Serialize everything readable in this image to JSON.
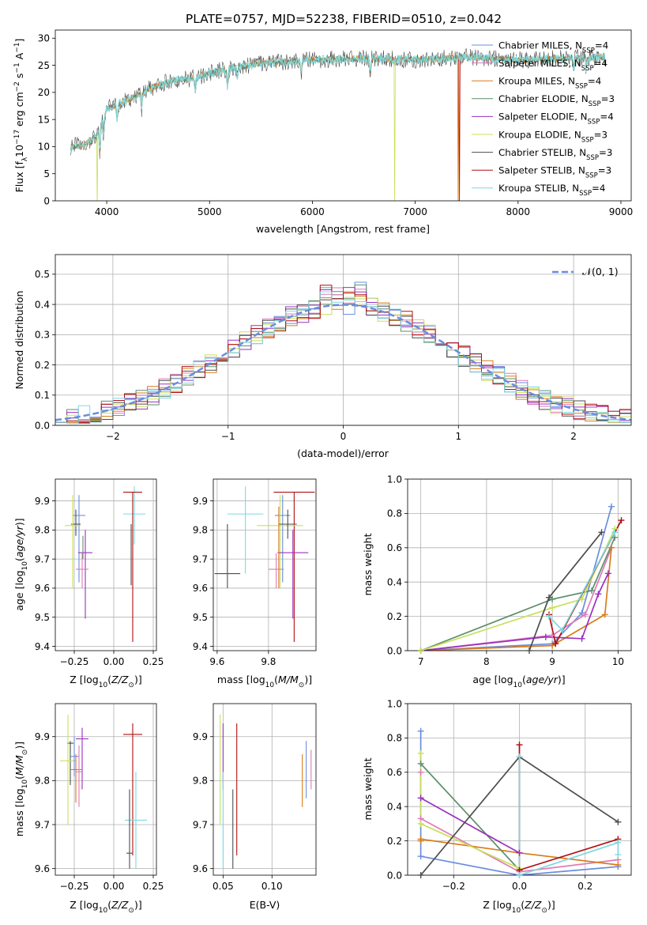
{
  "title": "PLATE=0757, MJD=52238, FIBERID=0510, z=0.042",
  "colors": {
    "Chabrier MILES": "#6a8de0",
    "Salpeter MILES": "#e07ab8",
    "Kroupa MILES": "#d97c1a",
    "Chabrier ELODIE": "#5d8f6a",
    "Salpeter ELODIE": "#9b30c0",
    "Kroupa ELODIE": "#c8e05a",
    "Chabrier STELIB": "#4d4d4d",
    "Salpeter STELIB": "#b01010",
    "Kroupa STELIB": "#7fd8e0"
  },
  "legend": [
    {
      "model": "Chabrier MILES",
      "label": "Chabrier MILES, N",
      "sub": "SSP",
      "tail": "=4"
    },
    {
      "model": "Salpeter MILES",
      "label": "Salpeter MILES, N",
      "sub": "SSP",
      "tail": "=4"
    },
    {
      "model": "Kroupa MILES",
      "label": "Kroupa MILES, N",
      "sub": "SSP",
      "tail": "=4"
    },
    {
      "model": "Chabrier ELODIE",
      "label": "Chabrier ELODIE, N",
      "sub": "SSP",
      "tail": "=3"
    },
    {
      "model": "Salpeter ELODIE",
      "label": "Salpeter ELODIE, N",
      "sub": "SSP",
      "tail": "=4"
    },
    {
      "model": "Kroupa ELODIE",
      "label": "Kroupa ELODIE, N",
      "sub": "SSP",
      "tail": "=3"
    },
    {
      "model": "Chabrier STELIB",
      "label": "Chabrier STELIB, N",
      "sub": "SSP",
      "tail": "=3"
    },
    {
      "model": "Salpeter STELIB",
      "label": "Salpeter STELIB, N",
      "sub": "SSP",
      "tail": "=3"
    },
    {
      "model": "Kroupa STELIB",
      "label": "Kroupa STELIB, N",
      "sub": "SSP",
      "tail": "=4"
    }
  ],
  "chart_data": [
    {
      "id": "spectrum",
      "type": "line",
      "xlabel": "wavelength [Angstrom, rest frame]",
      "ylabel": "Flux [f",
      "xlim": [
        3500,
        9100
      ],
      "ylim": [
        0,
        31.5
      ],
      "xticks": [
        4000,
        5000,
        6000,
        7000,
        8000,
        9000
      ],
      "yticks": [
        0,
        5,
        10,
        15,
        20,
        25,
        30
      ],
      "continuum": [
        [
          3650,
          10
        ],
        [
          3800,
          10.5
        ],
        [
          3900,
          12
        ],
        [
          4000,
          17
        ],
        [
          4200,
          18.5
        ],
        [
          4400,
          20.5
        ],
        [
          4600,
          22
        ],
        [
          4800,
          22.5
        ],
        [
          5000,
          23.5
        ],
        [
          5200,
          24.5
        ],
        [
          5500,
          25.3
        ],
        [
          6000,
          26
        ],
        [
          6500,
          26.3
        ],
        [
          7000,
          26
        ],
        [
          7500,
          26.5
        ],
        [
          8000,
          26
        ],
        [
          8500,
          26.3
        ],
        [
          8850,
          26.5
        ]
      ]
    },
    {
      "id": "residuals",
      "type": "line",
      "xlabel": "(data-model)/error",
      "ylabel": "Normed distribution",
      "xlim": [
        -2.5,
        2.5
      ],
      "ylim": [
        0,
        0.565
      ],
      "xticks": [
        -2,
        -1,
        0,
        1,
        2
      ],
      "yticks": [
        0.0,
        0.1,
        0.2,
        0.3,
        0.4,
        0.5
      ],
      "legend": "𝒩(0, 1)",
      "reference_curve": "normal(0,1)"
    },
    {
      "id": "age_vs_Z",
      "type": "scatter",
      "xlabel": "Z [log",
      "ylabel": "age  [log",
      "xlim": [
        -0.37,
        0.27
      ],
      "ylim": [
        9.385,
        9.975
      ],
      "xticks": [
        -0.25,
        0.0,
        0.25
      ],
      "yticks": [
        9.4,
        9.5,
        9.6,
        9.7,
        9.8,
        9.9
      ],
      "points": [
        {
          "model": "Chabrier MILES",
          "x": -0.22,
          "y": 9.85,
          "xerr": 0.04,
          "ylo": 9.62,
          "yhi": 9.92
        },
        {
          "model": "Kroupa STELIB",
          "x": 0.13,
          "y": 9.855,
          "xerr": 0.07,
          "ylo": 9.75,
          "yhi": 9.95
        },
        {
          "model": "Salpeter STELIB",
          "x": 0.12,
          "y": 9.93,
          "xerr": 0.06,
          "ylo": 9.415,
          "yhi": 9.93
        },
        {
          "model": "Chabrier STELIB",
          "x": 0.11,
          "y": 9.65,
          "xerr": 0.0,
          "ylo": 9.61,
          "yhi": 9.82
        },
        {
          "model": "Chabrier STELIB",
          "x": -0.24,
          "y": 9.82,
          "xerr": 0.03,
          "ylo": 9.78,
          "yhi": 9.87
        },
        {
          "model": "Kroupa ELODIE",
          "x": -0.26,
          "y": 9.815,
          "xerr": 0.05,
          "ylo": 9.6,
          "yhi": 9.92
        },
        {
          "model": "Salpeter ELODIE",
          "x": -0.18,
          "y": 9.722,
          "xerr": 0.045,
          "ylo": 9.495,
          "yhi": 9.8
        },
        {
          "model": "Salpeter MILES",
          "x": -0.2,
          "y": 9.665,
          "xerr": 0.04,
          "ylo": 9.6,
          "yhi": 9.72
        },
        {
          "model": "Chabrier ELODIE",
          "x": -0.195,
          "y": 9.75,
          "xerr": 0.0,
          "ylo": 9.7,
          "yhi": 9.78
        }
      ]
    },
    {
      "id": "age_vs_mass",
      "type": "scatter",
      "xlabel": "mass [log",
      "ylabel": "",
      "xlim": [
        9.585,
        9.985
      ],
      "ylim": [
        9.385,
        9.975
      ],
      "xticks": [
        9.6,
        9.8
      ],
      "yticks": [
        9.4,
        9.5,
        9.6,
        9.7,
        9.8,
        9.9
      ],
      "points": [
        {
          "model": "Salpeter STELIB",
          "x": 9.9,
          "y": 9.93,
          "xerr": 0.08,
          "ylo": 9.415,
          "yhi": 9.93
        },
        {
          "model": "Kroupa STELIB",
          "x": 9.71,
          "y": 9.855,
          "xerr": 0.07,
          "ylo": 9.65,
          "yhi": 9.95
        },
        {
          "model": "Chabrier MILES",
          "x": 9.855,
          "y": 9.85,
          "xerr": 0.03,
          "ylo": 9.62,
          "yhi": 9.92
        },
        {
          "model": "Chabrier STELIB",
          "x": 9.64,
          "y": 9.65,
          "xerr": 0.05,
          "ylo": 9.6,
          "yhi": 9.82
        },
        {
          "model": "Kroupa ELODIE",
          "x": 9.845,
          "y": 9.815,
          "xerr": 0.09,
          "ylo": 9.6,
          "yhi": 9.92
        },
        {
          "model": "Chabrier STELIB",
          "x": 9.875,
          "y": 9.82,
          "xerr": 0.035,
          "ylo": 9.77,
          "yhi": 9.87
        },
        {
          "model": "Salpeter ELODIE",
          "x": 9.895,
          "y": 9.722,
          "xerr": 0.06,
          "ylo": 9.495,
          "yhi": 9.8
        },
        {
          "model": "Salpeter MILES",
          "x": 9.83,
          "y": 9.665,
          "xerr": 0.03,
          "ylo": 9.6,
          "yhi": 9.72
        },
        {
          "model": "Kroupa MILES",
          "x": 9.84,
          "y": 9.84,
          "xerr": 0.0,
          "ylo": 9.6,
          "yhi": 9.88
        }
      ]
    },
    {
      "id": "mw_vs_age",
      "type": "line",
      "xlabel": "age  [log",
      "ylabel": "mass weight",
      "xlim": [
        6.8,
        10.2
      ],
      "ylim": [
        0,
        1.0
      ],
      "xticks": [
        7,
        8,
        9,
        10
      ],
      "yticks": [
        0.0,
        0.2,
        0.4,
        0.6,
        0.8,
        1.0
      ],
      "series": [
        {
          "model": "Chabrier MILES",
          "x": [
            7.0,
            9.0,
            9.45,
            9.9
          ],
          "y": [
            0.0,
            0.04,
            0.22,
            0.84
          ]
        },
        {
          "model": "Salpeter MILES",
          "x": [
            7.0,
            9.0,
            9.5,
            9.9
          ],
          "y": [
            0.0,
            0.09,
            0.21,
            0.6
          ]
        },
        {
          "model": "Kroupa MILES",
          "x": [
            7.0,
            9.0,
            9.8,
            9.9
          ],
          "y": [
            0.0,
            0.03,
            0.21,
            0.6
          ]
        },
        {
          "model": "Chabrier ELODIE",
          "x": [
            7.0,
            9.0,
            9.6,
            9.95
          ],
          "y": [
            0.0,
            0.3,
            0.35,
            0.66
          ]
        },
        {
          "model": "Salpeter ELODIE",
          "x": [
            7.0,
            8.9,
            9.45,
            9.7,
            9.85
          ],
          "y": [
            0.0,
            0.08,
            0.07,
            0.33,
            0.45
          ]
        },
        {
          "model": "Kroupa ELODIE",
          "x": [
            7.0,
            9.0,
            9.45,
            9.95
          ],
          "y": [
            0.0,
            0.25,
            0.3,
            0.71
          ]
        },
        {
          "model": "Chabrier STELIB",
          "x": [
            8.65,
            8.95,
            9.75
          ],
          "y": [
            0.0,
            0.31,
            0.69
          ]
        },
        {
          "model": "Salpeter STELIB",
          "x": [
            8.95,
            9.05,
            10.05
          ],
          "y": [
            0.21,
            0.04,
            0.76
          ]
        },
        {
          "model": "Kroupa STELIB",
          "x": [
            8.95,
            9.15,
            9.95
          ],
          "y": [
            0.2,
            0.12,
            0.69
          ]
        }
      ]
    },
    {
      "id": "mass_vs_Z",
      "type": "scatter",
      "xlabel": "Z [log",
      "ylabel": "mass [log",
      "xlim": [
        -0.37,
        0.27
      ],
      "ylim": [
        9.585,
        9.975
      ],
      "xticks": [
        -0.25,
        0.0,
        0.25
      ],
      "yticks": [
        9.6,
        9.7,
        9.8,
        9.9
      ],
      "points": [
        {
          "model": "Salpeter STELIB",
          "x": 0.12,
          "y": 9.905,
          "xerr": 0.06,
          "ylo": 9.63,
          "yhi": 9.93
        },
        {
          "model": "Kroupa STELIB",
          "x": 0.14,
          "y": 9.71,
          "xerr": 0.07,
          "ylo": 9.6,
          "yhi": 9.82
        },
        {
          "model": "Chabrier STELIB",
          "x": 0.1,
          "y": 9.635,
          "xerr": 0.02,
          "ylo": 9.6,
          "yhi": 9.78
        },
        {
          "model": "Chabrier STELIB",
          "x": -0.275,
          "y": 9.885,
          "xerr": 0.02,
          "ylo": 9.79,
          "yhi": 9.89
        },
        {
          "model": "Kroupa ELODIE",
          "x": -0.29,
          "y": 9.845,
          "xerr": 0.05,
          "ylo": 9.7,
          "yhi": 9.95
        },
        {
          "model": "Salpeter ELODIE",
          "x": -0.2,
          "y": 9.895,
          "xerr": 0.04,
          "ylo": 9.78,
          "yhi": 9.92
        },
        {
          "model": "Chabrier MILES",
          "x": -0.25,
          "y": 9.855,
          "xerr": 0.03,
          "ylo": 9.81,
          "yhi": 9.9
        },
        {
          "model": "Kroupa MILES",
          "x": -0.24,
          "y": 9.825,
          "xerr": 0.04,
          "ylo": 9.75,
          "yhi": 9.86
        },
        {
          "model": "Salpeter MILES",
          "x": -0.22,
          "y": 9.82,
          "xerr": 0.02,
          "ylo": 9.74,
          "yhi": 9.88
        }
      ]
    },
    {
      "id": "mass_vs_ebv",
      "type": "scatter",
      "xlabel": "E(B-V)",
      "ylabel": "",
      "xlim": [
        0.04,
        0.145
      ],
      "ylim": [
        9.585,
        9.975
      ],
      "xticks": [
        0.05,
        0.1
      ],
      "yticks": [
        9.6,
        9.7,
        9.8,
        9.9
      ],
      "points": [
        {
          "model": "Kroupa ELODIE",
          "x": 0.047,
          "ylo": 9.7,
          "yhi": 9.95
        },
        {
          "model": "Salpeter ELODIE",
          "x": 0.05,
          "ylo": 9.78,
          "yhi": 9.93
        },
        {
          "model": "Kroupa STELIB",
          "x": 0.05,
          "ylo": 9.6,
          "yhi": 9.82
        },
        {
          "model": "Chabrier STELIB",
          "x": 0.06,
          "ylo": 9.6,
          "yhi": 9.78
        },
        {
          "model": "Salpeter STELIB",
          "x": 0.064,
          "ylo": 9.63,
          "yhi": 9.93
        },
        {
          "model": "Kroupa MILES",
          "x": 0.131,
          "ylo": 9.74,
          "yhi": 9.86
        },
        {
          "model": "Chabrier MILES",
          "x": 0.135,
          "ylo": 9.76,
          "yhi": 9.89
        },
        {
          "model": "Salpeter MILES",
          "x": 0.14,
          "ylo": 9.78,
          "yhi": 9.87
        }
      ]
    },
    {
      "id": "mw_vs_Z",
      "type": "line",
      "xlabel": "Z [log",
      "ylabel": "mass weight",
      "xlim": [
        -0.34,
        0.34
      ],
      "ylim": [
        0,
        1.0
      ],
      "xticks": [
        -0.2,
        0.0,
        0.2
      ],
      "yticks": [
        0.0,
        0.2,
        0.4,
        0.6,
        0.8,
        1.0
      ],
      "series": [
        {
          "model": "Chabrier MILES",
          "x": [
            -0.3,
            -0.3,
            0.0,
            0.3
          ],
          "y": [
            0.84,
            0.11,
            0.0,
            0.05
          ]
        },
        {
          "model": "Salpeter MILES",
          "x": [
            -0.3,
            -0.3,
            0.0,
            0.3
          ],
          "y": [
            0.6,
            0.33,
            0.02,
            0.09
          ]
        },
        {
          "model": "Kroupa MILES",
          "x": [
            -0.3,
            -0.3,
            0.0,
            0.3
          ],
          "y": [
            0.2,
            0.21,
            0.13,
            0.06
          ]
        },
        {
          "model": "Chabrier ELODIE",
          "x": [
            -0.3,
            0.0
          ],
          "y": [
            0.65,
            0.03
          ]
        },
        {
          "model": "Salpeter ELODIE",
          "x": [
            -0.3,
            0.0
          ],
          "y": [
            0.45,
            0.13
          ]
        },
        {
          "model": "Kroupa ELODIE",
          "x": [
            -0.3,
            -0.3,
            0.0
          ],
          "y": [
            0.71,
            0.3,
            0.04
          ]
        },
        {
          "model": "Chabrier STELIB",
          "x": [
            -0.3,
            0.0,
            0.3
          ],
          "y": [
            0.0,
            0.69,
            0.31
          ]
        },
        {
          "model": "Salpeter STELIB",
          "x": [
            0.0,
            0.0,
            0.3
          ],
          "y": [
            0.76,
            0.03,
            0.21
          ]
        },
        {
          "model": "Kroupa STELIB",
          "x": [
            0.0,
            0.0,
            0.3,
            0.3
          ],
          "y": [
            0.69,
            0.0,
            0.19,
            0.12
          ]
        }
      ]
    }
  ]
}
